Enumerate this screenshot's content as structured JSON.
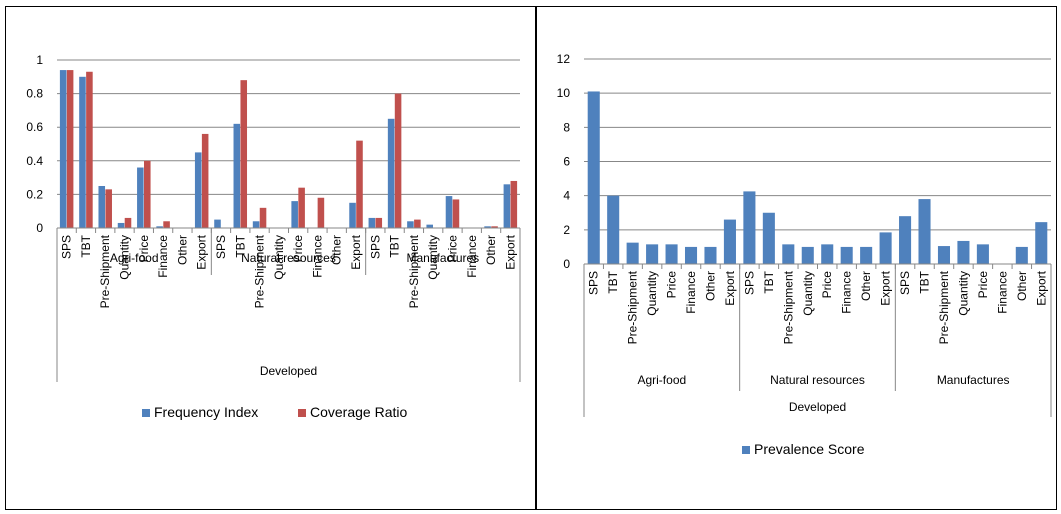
{
  "colors": {
    "frequency": "#4f81bd",
    "coverage": "#c0504d",
    "prevalence": "#4f81bd",
    "grid": "#878787",
    "axis": "#878787"
  },
  "chart_data": [
    {
      "type": "bar",
      "ylim": [
        0,
        1
      ],
      "yticks": [
        0,
        0.2,
        0.4,
        0.6,
        0.8,
        1
      ],
      "ytick_labels": [
        "0",
        "0.2",
        "0.4",
        "0.6",
        "0.8",
        "1"
      ],
      "grid": true,
      "legend_position": "bottom",
      "outer_group": "Developed",
      "groups": [
        "Agri-food",
        "Natural resources",
        "Manufactures"
      ],
      "categories": [
        "SPS",
        "TBT",
        "Pre-Shipment",
        "Quantity",
        "Price",
        "Finance",
        "Other",
        "Export"
      ],
      "series": [
        {
          "name": "Frequency Index",
          "color_key": "frequency",
          "values": [
            [
              0.94,
              0.9,
              0.25,
              0.03,
              0.36,
              0.01,
              0.0,
              0.45
            ],
            [
              0.05,
              0.62,
              0.04,
              0.0,
              0.16,
              0.0,
              0.0,
              0.15
            ],
            [
              0.06,
              0.65,
              0.04,
              0.02,
              0.19,
              0.0,
              0.01,
              0.26
            ]
          ]
        },
        {
          "name": "Coverage Ratio",
          "color_key": "coverage",
          "values": [
            [
              0.94,
              0.93,
              0.23,
              0.06,
              0.4,
              0.04,
              0.0,
              0.56
            ],
            [
              0.0,
              0.88,
              0.12,
              0.0,
              0.24,
              0.18,
              0.0,
              0.52
            ],
            [
              0.06,
              0.8,
              0.05,
              0.0,
              0.17,
              0.0,
              0.01,
              0.28
            ]
          ]
        }
      ]
    },
    {
      "type": "bar",
      "ylim": [
        0,
        12
      ],
      "yticks": [
        0,
        2,
        4,
        6,
        8,
        10,
        12
      ],
      "ytick_labels": [
        "0",
        "2",
        "4",
        "6",
        "8",
        "10",
        "12"
      ],
      "grid": true,
      "legend_position": "bottom",
      "outer_group": "Developed",
      "groups": [
        "Agri-food",
        "Natural resources",
        "Manufactures"
      ],
      "categories": [
        "SPS",
        "TBT",
        "Pre-Shipment",
        "Quantity",
        "Price",
        "Finance",
        "Other",
        "Export"
      ],
      "series": [
        {
          "name": "Prevalence Score",
          "color_key": "prevalence",
          "values": [
            [
              10.1,
              4.0,
              1.25,
              1.15,
              1.15,
              1.0,
              1.0,
              2.6
            ],
            [
              4.25,
              3.0,
              1.15,
              1.0,
              1.15,
              1.0,
              1.0,
              1.85
            ],
            [
              2.8,
              3.8,
              1.05,
              1.35,
              1.15,
              0.0,
              1.0,
              2.45
            ]
          ]
        }
      ]
    }
  ]
}
